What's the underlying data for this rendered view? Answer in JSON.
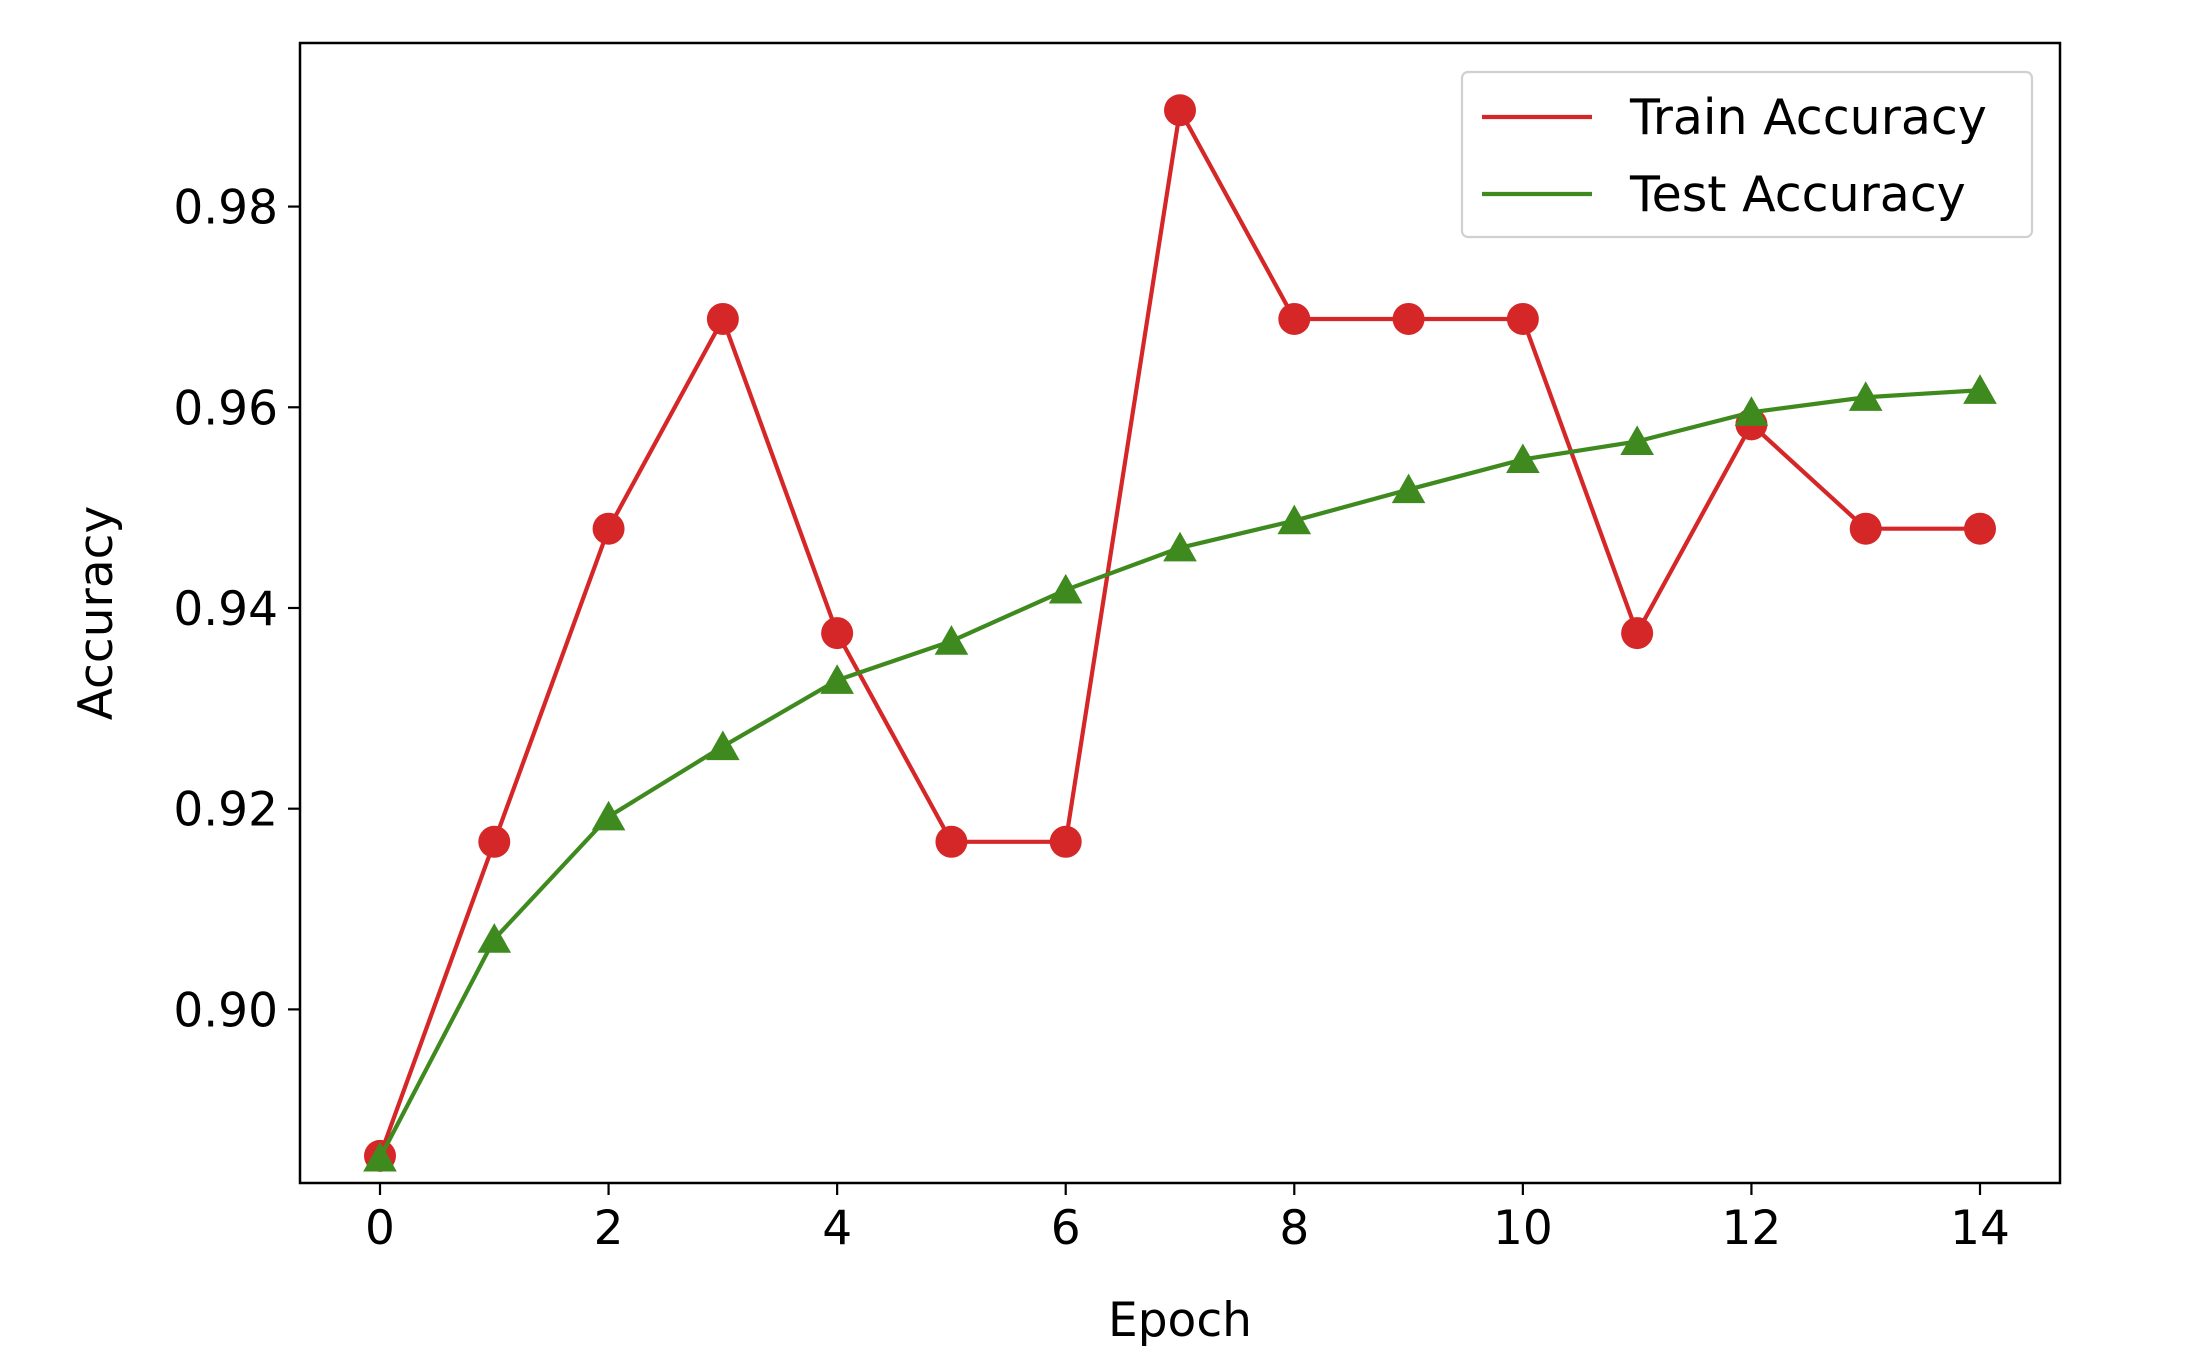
{
  "chart_data": {
    "type": "line",
    "title": "",
    "xlabel": "Epoch",
    "ylabel": "Accuracy",
    "x": [
      0,
      1,
      2,
      3,
      4,
      5,
      6,
      7,
      8,
      9,
      10,
      11,
      12,
      13,
      14
    ],
    "xlim": [
      -0.7,
      14.7
    ],
    "ylim": [
      0.8827,
      0.9963
    ],
    "xticks": [
      0,
      2,
      4,
      6,
      8,
      10,
      12,
      14
    ],
    "xtick_labels": [
      "0",
      "2",
      "4",
      "6",
      "8",
      "10",
      "12",
      "14"
    ],
    "yticks": [
      0.9,
      0.92,
      0.94,
      0.96,
      0.98
    ],
    "ytick_labels": [
      "0.90",
      "0.92",
      "0.94",
      "0.96",
      "0.98"
    ],
    "grid": false,
    "legend_position": "top-right",
    "series": [
      {
        "name": "Train Accuracy",
        "color": "#d62728",
        "marker": "circle",
        "values": [
          0.8854,
          0.9167,
          0.9479,
          0.9688,
          0.9375,
          0.9167,
          0.9167,
          0.9896,
          0.9688,
          0.9688,
          0.9688,
          0.9375,
          0.9583,
          0.9479,
          0.9479
        ]
      },
      {
        "name": "Test Accuracy",
        "color": "#3f8a1f",
        "marker": "triangle",
        "values": [
          0.8852,
          0.907,
          0.9192,
          0.9262,
          0.9328,
          0.9367,
          0.9418,
          0.946,
          0.9487,
          0.9518,
          0.9548,
          0.9566,
          0.9595,
          0.961,
          0.9617
        ]
      }
    ]
  }
}
